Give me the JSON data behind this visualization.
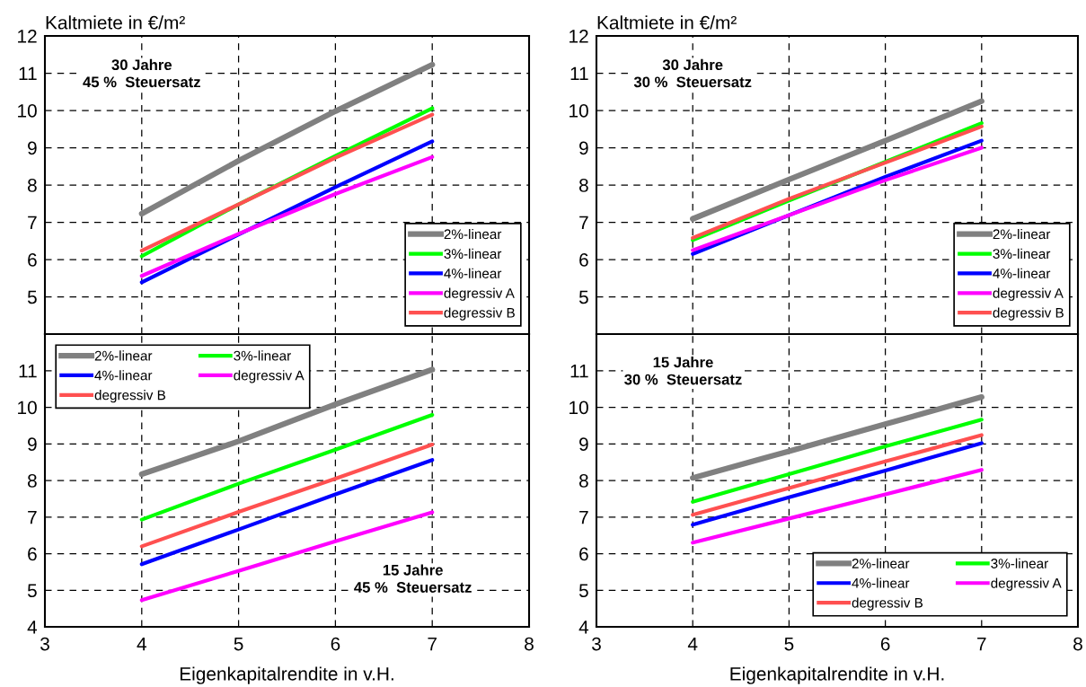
{
  "chart_data": [
    {
      "type": "line",
      "ylabel": "Kaltmiete in €/m²",
      "annotations": [
        "30 Jahre\n45 %  Steuersatz"
      ],
      "x": [
        4,
        5,
        6,
        7
      ],
      "xlim": [
        3,
        8
      ],
      "xticks": [
        3,
        4,
        5,
        6,
        7,
        8
      ],
      "ylim": [
        4,
        12
      ],
      "yticks": [
        5,
        6,
        7,
        8,
        9,
        10,
        11,
        12
      ],
      "tick_labels": "y",
      "grid": true,
      "legend": "bottom right",
      "marker": "none",
      "line_style": "solid",
      "series": [
        {
          "name": "2%-linear",
          "color": "#808080",
          "values": [
            7.23,
            8.65,
            9.98,
            11.23
          ]
        },
        {
          "name": "3%-linear",
          "color": "#00ff00",
          "values": [
            6.09,
            7.48,
            8.78,
            10.06
          ]
        },
        {
          "name": "4%-linear",
          "color": "#0000ff",
          "values": [
            5.39,
            6.67,
            7.94,
            9.17
          ]
        },
        {
          "name": "degressiv A",
          "color": "#ff00ff",
          "values": [
            5.56,
            6.69,
            7.76,
            8.75
          ]
        },
        {
          "name": "degressiv B",
          "color": "#ff5050",
          "values": [
            6.24,
            7.48,
            8.73,
            9.89
          ]
        }
      ]
    },
    {
      "type": "line",
      "ylabel": "Kaltmiete in €/m²",
      "annotations": [
        "30 Jahre\n30 %  Steuersatz"
      ],
      "x": [
        4,
        5,
        6,
        7
      ],
      "xlim": [
        3,
        8
      ],
      "xticks": [
        3,
        4,
        5,
        6,
        7,
        8
      ],
      "ylim": [
        4,
        12
      ],
      "yticks": [
        5,
        6,
        7,
        8,
        9,
        10,
        11,
        12
      ],
      "tick_labels": "y",
      "grid": true,
      "legend": "bottom right",
      "marker": "none",
      "line_style": "solid",
      "series": [
        {
          "name": "2%-linear",
          "color": "#808080",
          "values": [
            7.09,
            8.15,
            9.19,
            10.25
          ]
        },
        {
          "name": "3%-linear",
          "color": "#00ff00",
          "values": [
            6.52,
            7.58,
            8.62,
            9.66
          ]
        },
        {
          "name": "4%-linear",
          "color": "#0000ff",
          "values": [
            6.15,
            7.19,
            8.22,
            9.19
          ]
        },
        {
          "name": "degressiv A",
          "color": "#ff00ff",
          "values": [
            6.25,
            7.19,
            8.13,
            9.0
          ]
        },
        {
          "name": "degressiv B",
          "color": "#ff5050",
          "values": [
            6.58,
            7.63,
            8.6,
            9.57
          ]
        }
      ]
    },
    {
      "type": "line",
      "xlabel": "Eigenkapitalrendite in v.H.",
      "annotations": [
        "15 Jahre\n45 %  Steuersatz"
      ],
      "x": [
        4,
        5,
        6,
        7
      ],
      "xlim": [
        3,
        8
      ],
      "xticks": [
        3,
        4,
        5,
        6,
        7,
        8
      ],
      "ylim": [
        4,
        12
      ],
      "yticks": [
        4,
        5,
        6,
        7,
        8,
        9,
        10,
        11
      ],
      "grid": true,
      "legend": "top left",
      "marker": "none",
      "line_style": "solid",
      "series": [
        {
          "name": "2%-linear",
          "color": "#808080",
          "values": [
            8.17,
            9.07,
            10.08,
            11.03
          ]
        },
        {
          "name": "3%-linear",
          "color": "#00ff00",
          "values": [
            6.93,
            7.91,
            8.84,
            9.79
          ]
        },
        {
          "name": "4%-linear",
          "color": "#0000ff",
          "values": [
            5.71,
            6.66,
            7.62,
            8.56
          ]
        },
        {
          "name": "degressiv A",
          "color": "#ff00ff",
          "values": [
            4.73,
            5.53,
            6.34,
            7.13
          ]
        },
        {
          "name": "degressiv B",
          "color": "#ff5050",
          "values": [
            6.2,
            7.14,
            8.05,
            8.98
          ]
        }
      ]
    },
    {
      "type": "line",
      "xlabel": "Eigenkapitalrendite in v.H.",
      "annotations": [
        "15 Jahre\n30 %  Steuersatz"
      ],
      "x": [
        4,
        5,
        6,
        7
      ],
      "xlim": [
        3,
        8
      ],
      "xticks": [
        3,
        4,
        5,
        6,
        7,
        8
      ],
      "ylim": [
        4,
        12
      ],
      "yticks": [
        4,
        5,
        6,
        7,
        8,
        9,
        10,
        11
      ],
      "grid": true,
      "legend": "bottom right",
      "marker": "none",
      "line_style": "solid",
      "series": [
        {
          "name": "2%-linear",
          "color": "#808080",
          "values": [
            8.07,
            8.8,
            9.54,
            10.28
          ]
        },
        {
          "name": "3%-linear",
          "color": "#00ff00",
          "values": [
            7.42,
            8.17,
            8.93,
            9.66
          ]
        },
        {
          "name": "4%-linear",
          "color": "#0000ff",
          "values": [
            6.79,
            7.54,
            8.27,
            9.02
          ]
        },
        {
          "name": "degressiv A",
          "color": "#ff00ff",
          "values": [
            6.3,
            6.96,
            7.62,
            8.29
          ]
        },
        {
          "name": "degressiv B",
          "color": "#ff5050",
          "values": [
            7.06,
            7.79,
            8.52,
            9.24
          ]
        }
      ]
    }
  ]
}
